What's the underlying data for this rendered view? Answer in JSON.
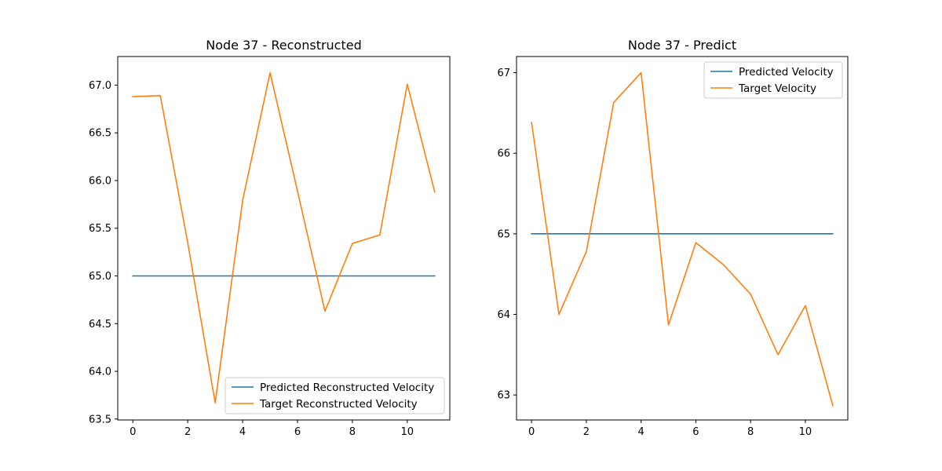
{
  "chart_data": [
    {
      "type": "line",
      "title": "Node 37 - Reconstructed",
      "xlabel": "",
      "ylabel": "",
      "x": [
        0,
        1,
        2,
        3,
        4,
        5,
        6,
        7,
        8,
        9,
        10,
        11
      ],
      "xlim": [
        -0.55,
        11.55
      ],
      "ylim": [
        63.49,
        67.3
      ],
      "xticks": [
        0,
        2,
        4,
        6,
        8,
        10
      ],
      "xtick_labels": [
        "0",
        "2",
        "4",
        "6",
        "8",
        "10"
      ],
      "yticks": [
        63.5,
        64.0,
        64.5,
        65.0,
        65.5,
        66.0,
        66.5,
        67.0
      ],
      "ytick_labels": [
        "63.5",
        "64.0",
        "64.5",
        "65.0",
        "65.5",
        "66.0",
        "66.5",
        "67.0"
      ],
      "grid": false,
      "legend_position": "lower-right",
      "series": [
        {
          "name": "Predicted Reconstructed Velocity",
          "color": "#1f77b4",
          "values": [
            65.0,
            65.0,
            65.0,
            65.0,
            65.0,
            65.0,
            65.0,
            65.0,
            65.0,
            65.0,
            65.0,
            65.0
          ]
        },
        {
          "name": "Target Reconstructed Velocity",
          "color": "#ff7f0e",
          "values": [
            66.88,
            66.89,
            65.35,
            63.67,
            65.79,
            67.13,
            65.89,
            64.63,
            65.34,
            65.43,
            67.01,
            65.88
          ]
        }
      ]
    },
    {
      "type": "line",
      "title": "Node 37 - Predict",
      "xlabel": "",
      "ylabel": "",
      "x": [
        0,
        1,
        2,
        3,
        4,
        5,
        6,
        7,
        8,
        9,
        10,
        11
      ],
      "xlim": [
        -0.55,
        11.55
      ],
      "ylim": [
        62.69,
        67.2
      ],
      "xticks": [
        0,
        2,
        4,
        6,
        8,
        10
      ],
      "xtick_labels": [
        "0",
        "2",
        "4",
        "6",
        "8",
        "10"
      ],
      "yticks": [
        63,
        64,
        65,
        66,
        67
      ],
      "ytick_labels": [
        "63",
        "64",
        "65",
        "66",
        "67"
      ],
      "grid": false,
      "legend_position": "upper-right",
      "series": [
        {
          "name": "Predicted Velocity",
          "color": "#1f77b4",
          "values": [
            65.0,
            65.0,
            65.0,
            65.0,
            65.0,
            65.0,
            65.0,
            65.0,
            65.0,
            65.0,
            65.0,
            65.0
          ]
        },
        {
          "name": "Target Velocity",
          "color": "#ff7f0e",
          "values": [
            66.38,
            64.0,
            64.78,
            66.63,
            67.0,
            63.87,
            64.89,
            64.62,
            64.25,
            63.5,
            64.11,
            62.87
          ]
        }
      ]
    }
  ]
}
